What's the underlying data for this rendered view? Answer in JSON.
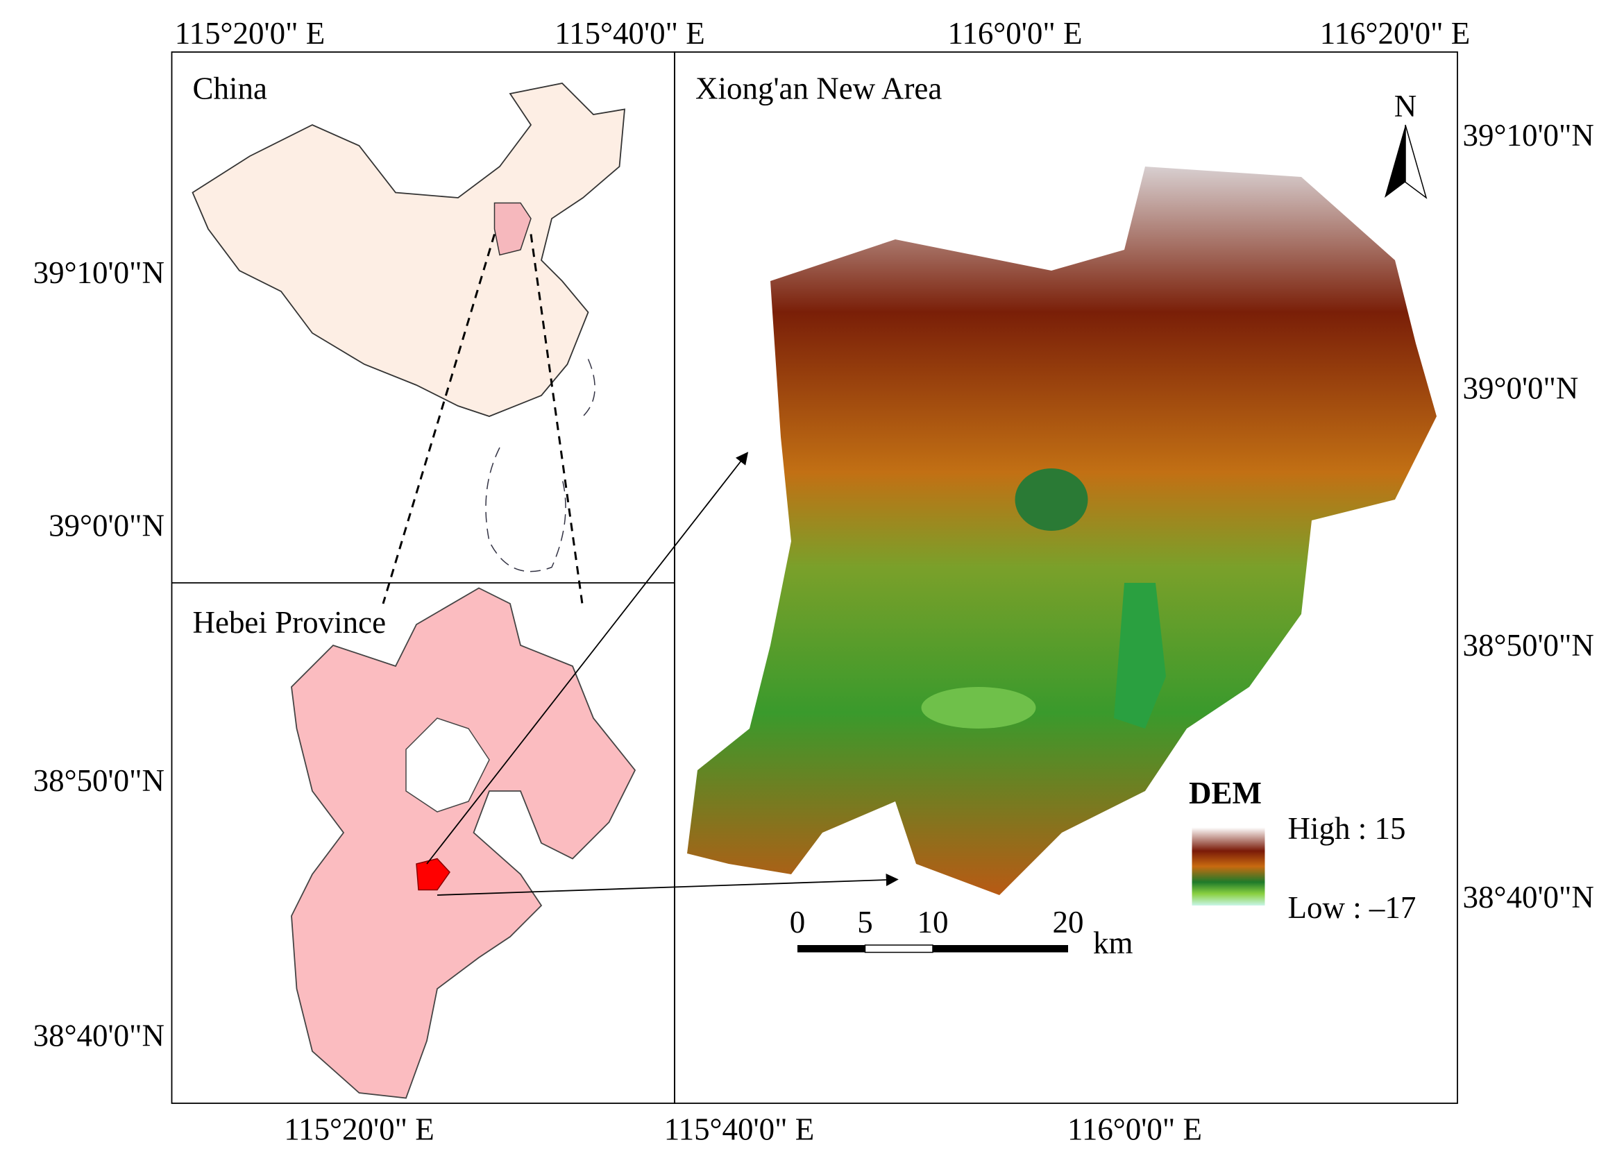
{
  "top_axis_labels": [
    "115°20'0\" E",
    "115°40'0\" E",
    "116°0'0\" E",
    "116°20'0\" E"
  ],
  "bottom_axis_labels": [
    "115°20'0\" E",
    "115°40'0\" E",
    "116°0'0\" E"
  ],
  "left_axis_labels": [
    "39°10'0\"N",
    "39°0'0\"N",
    "38°50'0\"N",
    "38°40'0\"N"
  ],
  "right_axis_labels": [
    "39°10'0\"N",
    "39°0'0\"N",
    "38°50'0\"N",
    "38°40'0\"N"
  ],
  "panels": {
    "china": "China",
    "hebei": "Hebei Province",
    "xiongan": "Xiong'an New Area"
  },
  "legend": {
    "title": "DEM",
    "high": "High : 15",
    "low": "Low : –17"
  },
  "scale_bar": {
    "ticks": [
      "0",
      "5",
      "10",
      "20"
    ],
    "unit": "km"
  },
  "north_arrow": "N"
}
